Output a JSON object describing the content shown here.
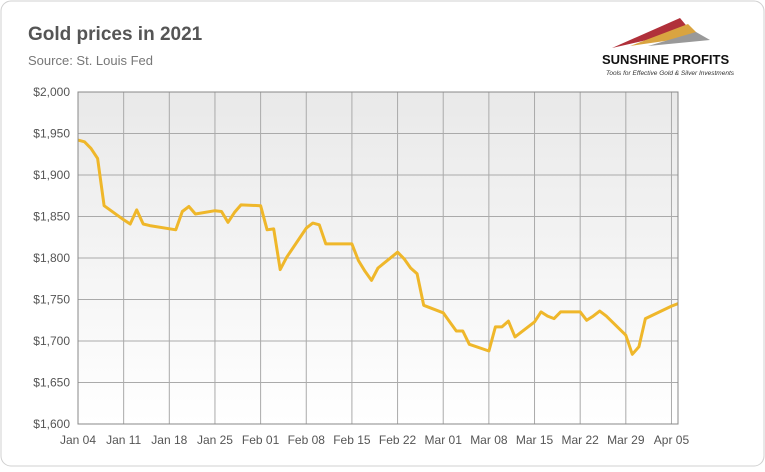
{
  "chart_data": {
    "type": "line",
    "title": "Gold prices in 2021",
    "subtitle": "Source: St. Louis Fed",
    "logo": {
      "name": "SUNSHINE PROFITS",
      "tagline": "Tools for Effective Gold & Silver Investments"
    },
    "x": [
      "Jan 04",
      "Jan 05",
      "Jan 06",
      "Jan 07",
      "Jan 08",
      "Jan 11",
      "Jan 12",
      "Jan 13",
      "Jan 14",
      "Jan 15",
      "Jan 19",
      "Jan 20",
      "Jan 21",
      "Jan 22",
      "Jan 25",
      "Jan 26",
      "Jan 27",
      "Jan 28",
      "Jan 29",
      "Feb 01",
      "Feb 02",
      "Feb 03",
      "Feb 04",
      "Feb 05",
      "Feb 08",
      "Feb 09",
      "Feb 10",
      "Feb 11",
      "Feb 12",
      "Feb 15",
      "Feb 16",
      "Feb 17",
      "Feb 18",
      "Feb 19",
      "Feb 22",
      "Feb 23",
      "Feb 24",
      "Feb 25",
      "Feb 26",
      "Mar 01",
      "Mar 02",
      "Mar 03",
      "Mar 04",
      "Mar 05",
      "Mar 08",
      "Mar 09",
      "Mar 10",
      "Mar 11",
      "Mar 12",
      "Mar 15",
      "Mar 16",
      "Mar 17",
      "Mar 18",
      "Mar 19",
      "Mar 22",
      "Mar 23",
      "Mar 24",
      "Mar 25",
      "Mar 26",
      "Mar 29",
      "Mar 30",
      "Mar 31",
      "Apr 01",
      "Apr 05",
      "Apr 06"
    ],
    "values": [
      1942,
      1940,
      1932,
      1920,
      1863,
      1846,
      1841,
      1858,
      1841,
      1839,
      1834,
      1856,
      1862,
      1853,
      1857,
      1856,
      1843,
      1855,
      1864,
      1863,
      1834,
      1835,
      1786,
      1801,
      1836,
      1842,
      1840,
      1817,
      1817,
      1817,
      1797,
      1784,
      1773,
      1788,
      1807,
      1799,
      1788,
      1781,
      1743,
      1734,
      1723,
      1712,
      1712,
      1696,
      1688,
      1717,
      1717,
      1724,
      1705,
      1723,
      1735,
      1730,
      1727,
      1735,
      1735,
      1725,
      1730,
      1736,
      1730,
      1707,
      1684,
      1693,
      1727,
      1742,
      1745
    ],
    "color": "#efb72a",
    "xlim": [
      "Jan 04",
      "Apr 06"
    ],
    "xticks": [
      "Jan 04",
      "Jan 11",
      "Jan 18",
      "Jan 25",
      "Feb 01",
      "Feb 08",
      "Feb 15",
      "Feb 22",
      "Mar 01",
      "Mar 08",
      "Mar 15",
      "Mar 22",
      "Mar 29",
      "Apr 05"
    ],
    "ylim": [
      1600,
      2000
    ],
    "yticks": [
      {
        "value": 1600,
        "label": "$1,600"
      },
      {
        "value": 1650,
        "label": "$1,650"
      },
      {
        "value": 1700,
        "label": "$1,700"
      },
      {
        "value": 1750,
        "label": "$1,750"
      },
      {
        "value": 1800,
        "label": "$1,800"
      },
      {
        "value": 1850,
        "label": "$1,850"
      },
      {
        "value": 1900,
        "label": "$1,900"
      },
      {
        "value": 1950,
        "label": "$1,950"
      },
      {
        "value": 2000,
        "label": "$2,000"
      }
    ],
    "grid": true
  }
}
